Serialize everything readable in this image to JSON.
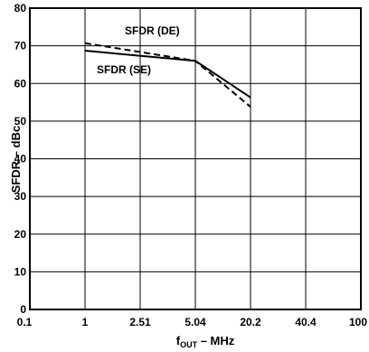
{
  "chart_data": {
    "type": "line",
    "xlabel_main": "f",
    "xlabel_sub": "OUT",
    "xlabel_rest": " – MHz",
    "ylabel": "SFDR – dBc",
    "x_ticks": [
      "0.1",
      "1",
      "2.51",
      "5.04",
      "20.2",
      "40.4",
      "100"
    ],
    "y_ticks": [
      0,
      10,
      20,
      30,
      40,
      50,
      60,
      70,
      80
    ],
    "ylim": [
      0,
      80
    ],
    "grid": true,
    "categories": [
      "1",
      "5.04",
      "20.2"
    ],
    "series": [
      {
        "name": "SFDR (SE)",
        "style": "solid",
        "x_index": [
          1,
          3,
          4
        ],
        "values": [
          68.7,
          66,
          56.3
        ]
      },
      {
        "name": "SFDR (DE)",
        "style": "dashed",
        "x_index": [
          1,
          3,
          4
        ],
        "values": [
          70.7,
          66,
          53.8
        ]
      }
    ]
  }
}
